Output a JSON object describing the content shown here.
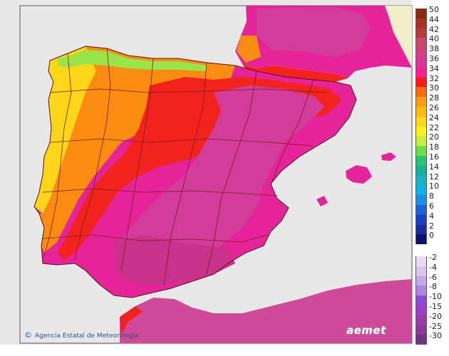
{
  "map": {
    "colors": {
      "sea": "#e8e8e8",
      "land_outside": "#d2d2d2",
      "border": "#7a1d1d",
      "very_hot": "#d43c9c",
      "hot": "#e5249a",
      "red": "#f2221e",
      "orange": "#fb8c12",
      "yellow": "#ffd51a",
      "green": "#9be34a",
      "africa": "#d04a9a"
    },
    "credit": "Agencia Estatal de Meteorología",
    "credit_symbol": "©",
    "logo": "aemet"
  },
  "legend": {
    "warm": [
      {
        "label": "50",
        "color": "#8b2a12"
      },
      {
        "label": "44",
        "color": "#a83222"
      },
      {
        "label": "42",
        "color": "#b93c3a"
      },
      {
        "label": "40",
        "color": "#c84a6a"
      },
      {
        "label": "38",
        "color": "#d2408a"
      },
      {
        "label": "36",
        "color": "#e0329c"
      },
      {
        "label": "34",
        "color": "#ff1f8c"
      },
      {
        "label": "32",
        "color": "#ff1a1a"
      },
      {
        "label": "30",
        "color": "#ff6a10"
      },
      {
        "label": "28",
        "color": "#ff9a14"
      },
      {
        "label": "26",
        "color": "#ffba16"
      },
      {
        "label": "24",
        "color": "#ffd818"
      },
      {
        "label": "22",
        "color": "#fff21a"
      },
      {
        "label": "20",
        "color": "#c8f03a"
      },
      {
        "label": "18",
        "color": "#68e048"
      },
      {
        "label": "16",
        "color": "#28c470"
      },
      {
        "label": "14",
        "color": "#18b09a"
      },
      {
        "label": "12",
        "color": "#16b6c0"
      },
      {
        "label": "10",
        "color": "#10b0e6"
      },
      {
        "label": "8",
        "color": "#1c8ee8"
      },
      {
        "label": "6",
        "color": "#2060d8"
      },
      {
        "label": "4",
        "color": "#1e40c0"
      },
      {
        "label": "2",
        "color": "#1a2ca0"
      },
      {
        "label": "0",
        "color": "#0a1470"
      }
    ],
    "cold": [
      {
        "label": "-2",
        "color": "#e8dcf4"
      },
      {
        "label": "-4",
        "color": "#d8c6ee"
      },
      {
        "label": "-6",
        "color": "#c4a8e8"
      },
      {
        "label": "-8",
        "color": "#ac86e2"
      },
      {
        "label": "-10",
        "color": "#8c4ad8"
      },
      {
        "label": "-15",
        "color": "#a040c8"
      },
      {
        "label": "-20",
        "color": "#9a3ca8"
      },
      {
        "label": "-25",
        "color": "#8a3a96"
      },
      {
        "label": "-30",
        "color": "#6c3684"
      }
    ]
  }
}
